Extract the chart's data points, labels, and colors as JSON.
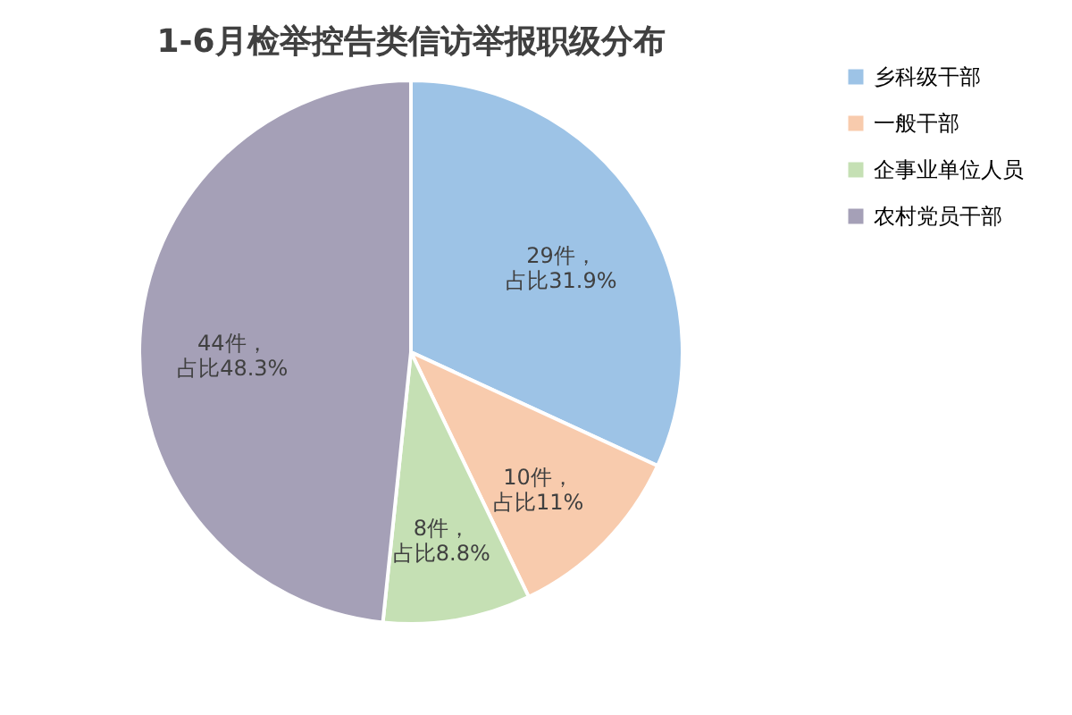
{
  "chart_data": {
    "type": "pie",
    "title": "1-6月检举控告类信访举报职级分布",
    "categories": [
      "乡科级干部",
      "一般干部",
      "企事业单位人员",
      "农村党员干部"
    ],
    "values": [
      29,
      10,
      8,
      44
    ],
    "colors": [
      "#9dc3e6",
      "#f8cbad",
      "#c5e0b4",
      "#a5a0b7"
    ],
    "value_labels": [
      "29件，占比31.9%",
      "10件，占比11%",
      "8件，占比8.8%",
      "44件，占比48.3%"
    ],
    "legend": "right"
  }
}
